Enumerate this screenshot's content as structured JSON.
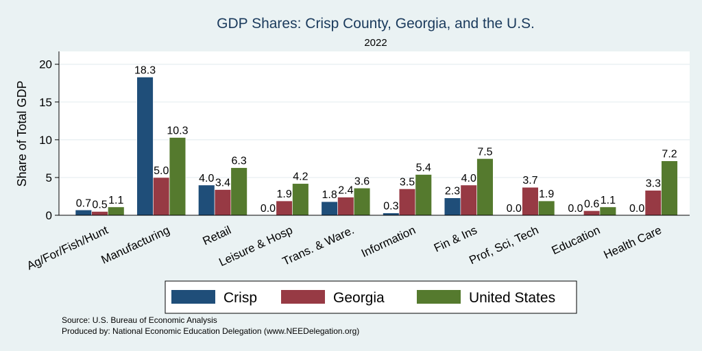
{
  "chart_data": {
    "type": "bar",
    "title": "GDP Shares: Crisp County, Georgia, and the U.S.",
    "subtitle": "2022",
    "ylabel": "Share of Total GDP",
    "xlabel": "",
    "ylim": [
      0,
      21.7
    ],
    "yticks": [
      0,
      5,
      10,
      15,
      20
    ],
    "grid": true,
    "legend_position": "bottom",
    "categories": [
      "Ag/For/Fish/Hunt",
      "Manufacturing",
      "Retail",
      "Leisure & Hosp",
      "Trans. & Ware.",
      "Information",
      "Fin & Ins",
      "Prof, Sci, Tech",
      "Education",
      "Health Care"
    ],
    "series": [
      {
        "name": "Crisp",
        "color": "#1f4e79",
        "values": [
          0.7,
          18.3,
          4.0,
          0.0,
          1.8,
          0.3,
          2.3,
          0.0,
          0.0,
          0.0
        ]
      },
      {
        "name": "Georgia",
        "color": "#973a44",
        "values": [
          0.5,
          5.0,
          3.4,
          1.9,
          2.4,
          3.5,
          4.0,
          3.7,
          0.6,
          3.3
        ]
      },
      {
        "name": "United States",
        "color": "#557a2e",
        "values": [
          1.1,
          10.3,
          6.3,
          4.2,
          3.6,
          5.4,
          7.5,
          1.9,
          1.1,
          7.2
        ]
      }
    ],
    "source_note": "Source: U.S. Bureau of Economic Analysis",
    "produced_note": "Produced by: National Economic Education Delegation (www.NEEDelegation.org)"
  }
}
